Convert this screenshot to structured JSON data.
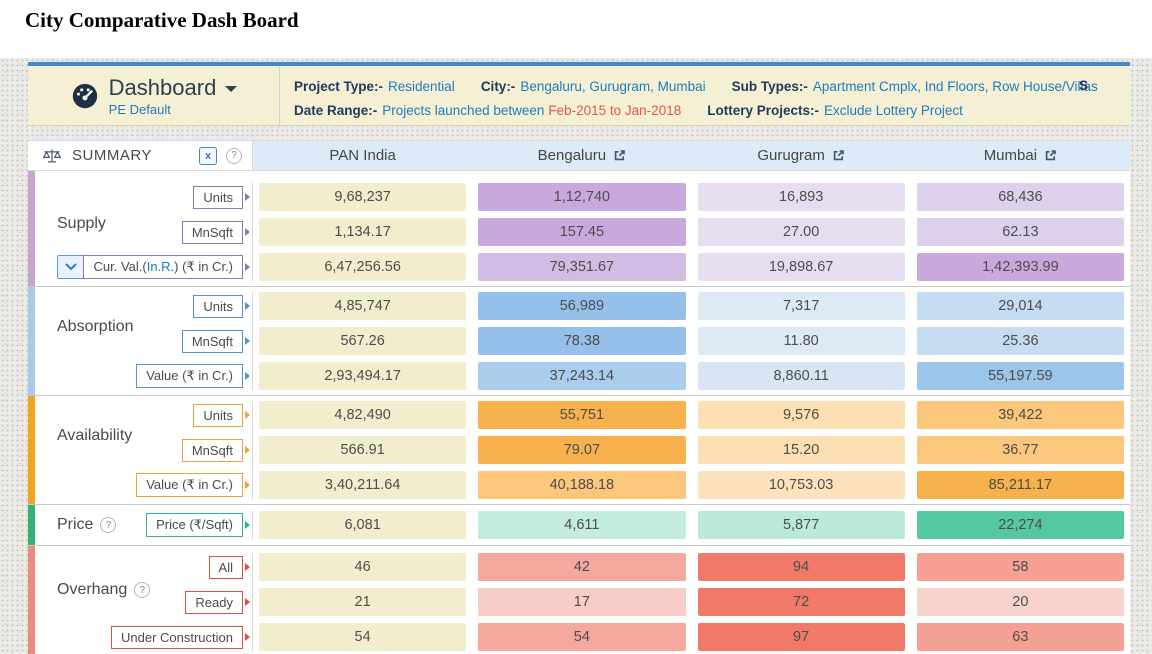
{
  "page": {
    "title": "City Comparative Dash Board"
  },
  "colors": {
    "accent_blue": "#3d8cc9",
    "header_cream": "#f5efd3",
    "column_header_blue": "#dcebf7",
    "pan_india_cell": "#f2eecd",
    "link_blue": "#1b7dc0",
    "date_red": "#e2574b"
  },
  "header": {
    "dashboard": {
      "label": "Dashboard",
      "sublabel": "PE Default"
    },
    "filters": {
      "row1": [
        {
          "label": "Project Type:-",
          "value": "Residential"
        },
        {
          "label": "City:-",
          "value": "Bengaluru, Gurugram, Mumbai"
        },
        {
          "label": "Sub Types:-",
          "value": "Apartment Cmplx, Ind Floors, Row House/Villas"
        }
      ],
      "row1_partial": "S",
      "row2": [
        {
          "label": "Date Range:-",
          "value": "Projects launched between",
          "value2": "Feb-2015 to Jan-2018"
        },
        {
          "label": "Lottery Projects:-",
          "value": "Exclude Lottery Project"
        }
      ]
    }
  },
  "table": {
    "summary_label": "SUMMARY",
    "excel_icon_label": "x",
    "help_icon_label": "?",
    "columns": [
      {
        "label": "PAN India",
        "external_link": false
      },
      {
        "label": "Bengaluru",
        "external_link": true
      },
      {
        "label": "Gurugram",
        "external_link": true
      },
      {
        "label": "Mumbai",
        "external_link": true
      }
    ],
    "groups": [
      {
        "name": "Supply",
        "help": false,
        "strip_color": "#c8a5ce",
        "accent": "#8a79ad",
        "rows": [
          {
            "label": "Units",
            "values": [
              "9,68,237",
              "1,12,740",
              "16,893",
              "68,436"
            ],
            "colors": [
              "#f2eecd",
              "#c9a9dd",
              "#e6def0",
              "#ddd0ea"
            ]
          },
          {
            "label": "MnSqft",
            "values": [
              "1,134.17",
              "157.45",
              "27.00",
              "62.13"
            ],
            "colors": [
              "#f2eecd",
              "#c9a9dd",
              "#e6def0",
              "#ddd0ea"
            ]
          },
          {
            "label_prefix": "Cur. Val.(",
            "label_link": "In.R.",
            "label_suffix": ") (₹ in Cr.)",
            "dropdown": true,
            "values": [
              "6,47,256.56",
              "79,351.67",
              "19,898.67",
              "1,42,393.99"
            ],
            "colors": [
              "#f2eecd",
              "#d2bce4",
              "#e6def0",
              "#c9a9dd"
            ]
          }
        ]
      },
      {
        "name": "Absorption",
        "help": false,
        "strip_color": "#a9c9e9",
        "accent": "#4f93c8",
        "rows": [
          {
            "label": "Units",
            "values": [
              "4,85,747",
              "56,989",
              "7,317",
              "29,014"
            ],
            "colors": [
              "#f2eecd",
              "#94c0e9",
              "#dde9f5",
              "#c6dcf2"
            ]
          },
          {
            "label": "MnSqft",
            "values": [
              "567.26",
              "78.38",
              "11.80",
              "25.36"
            ],
            "colors": [
              "#f2eecd",
              "#94c0e9",
              "#dde9f5",
              "#c6dcf2"
            ]
          },
          {
            "label": "Value (₹ in Cr.)",
            "values": [
              "2,93,494.17",
              "37,243.14",
              "8,860.11",
              "55,197.59"
            ],
            "colors": [
              "#f2eecd",
              "#aacdee",
              "#d8e6f4",
              "#9cc5ea"
            ]
          }
        ]
      },
      {
        "name": "Availability",
        "help": false,
        "strip_color": "#f2a51c",
        "accent": "#e9a13b",
        "rows": [
          {
            "label": "Units",
            "values": [
              "4,82,490",
              "55,751",
              "9,576",
              "39,422"
            ],
            "colors": [
              "#f2eecd",
              "#f7b24d",
              "#fcdfb2",
              "#fac77d"
            ]
          },
          {
            "label": "MnSqft",
            "values": [
              "566.91",
              "79.07",
              "15.20",
              "36.77"
            ],
            "colors": [
              "#f2eecd",
              "#f7b24d",
              "#fcdfb2",
              "#fac77d"
            ]
          },
          {
            "label": "Value (₹ in Cr.)",
            "values": [
              "3,40,211.64",
              "40,188.18",
              "10,753.03",
              "85,211.17"
            ],
            "colors": [
              "#f2eecd",
              "#fac77d",
              "#fce3bd",
              "#f7b24d"
            ]
          }
        ]
      },
      {
        "name": "Price",
        "help": true,
        "strip_color": "#32b277",
        "accent": "#36b38b",
        "rows": [
          {
            "label": "Price (₹/Sqft)",
            "values": [
              "6,081",
              "4,611",
              "5,877",
              "22,274"
            ],
            "colors": [
              "#f2eecd",
              "#c3ecdc",
              "#bceada",
              "#55c8a1"
            ]
          }
        ]
      },
      {
        "name": "Overhang",
        "help": true,
        "strip_color": "#ec8c80",
        "accent": "#dc4f44",
        "rows": [
          {
            "label": "All",
            "values": [
              "46",
              "42",
              "94",
              "58"
            ],
            "colors": [
              "#f2eecd",
              "#f5a89d",
              "#f1796a",
              "#f5a093"
            ]
          },
          {
            "label": "Ready",
            "values": [
              "21",
              "17",
              "72",
              "20"
            ],
            "colors": [
              "#f2eecd",
              "#f9cdc7",
              "#f1796a",
              "#f8d3ce"
            ]
          },
          {
            "label": "Under Construction",
            "values": [
              "54",
              "54",
              "97",
              "63"
            ],
            "colors": [
              "#f2eecd",
              "#f5a89d",
              "#f1796a",
              "#f5a095"
            ]
          }
        ]
      }
    ]
  }
}
